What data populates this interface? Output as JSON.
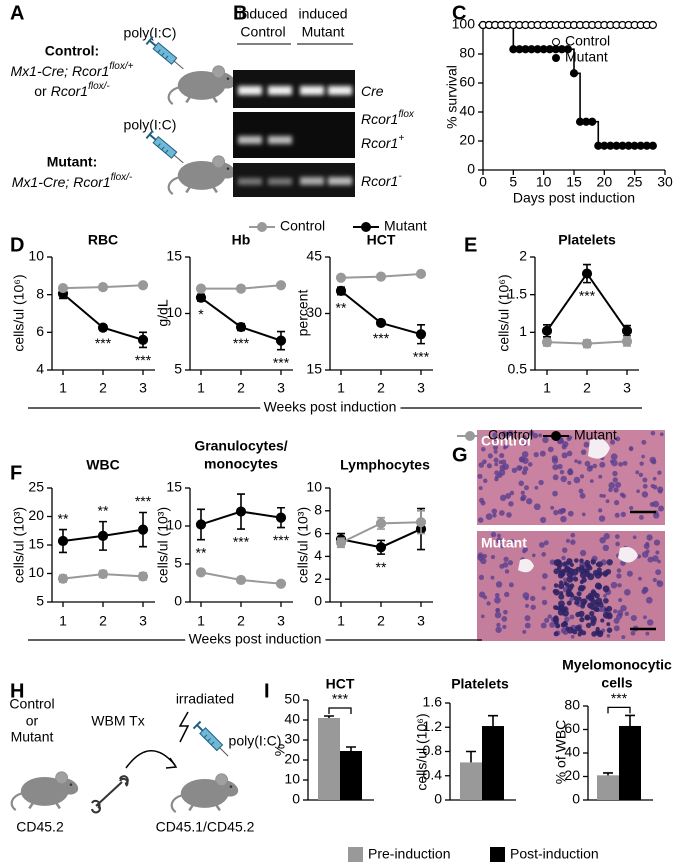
{
  "panel_labels": [
    "A",
    "B",
    "C",
    "D",
    "E",
    "F",
    "G",
    "H",
    "I"
  ],
  "panel_a": {
    "injection": [
      "poly(I:C)",
      "poly(I:C)"
    ],
    "control": {
      "label": "Control:",
      "line1": {
        "text": "Mx1-Cre; Rcor1",
        "sup": "flox/+"
      },
      "line2": {
        "conj": "or",
        "text": "Rcor1",
        "sup": "flox/-"
      }
    },
    "mutant": {
      "label": "Mutant:",
      "line1": {
        "text": "Mx1-Cre; Rcor1",
        "sup": "flox/-"
      }
    }
  },
  "panel_b": {
    "lanes": [
      {
        "line1": "induced",
        "line2": "Control"
      },
      {
        "line1": "induced",
        "line2": "Mutant"
      }
    ],
    "bands": [
      {
        "text": "Cre"
      },
      {
        "text": "Rcor1",
        "sup": "flox"
      },
      {
        "text": "Rcor1",
        "sup": "+"
      },
      {
        "text": "Rcor1",
        "sup": "-"
      }
    ]
  },
  "panel_g": {
    "labels": [
      "Control",
      "Mutant"
    ]
  },
  "panel_h": {
    "donor": [
      "Control",
      "or",
      "Mutant"
    ],
    "transplant": "WBM Tx",
    "treatment": "irradiated",
    "injection": "poly(I:C)",
    "donor_marker": "CD45.2",
    "recipient_marker": "CD45.1/CD45.2"
  },
  "chart_data": [
    {
      "type": "line",
      "step": true,
      "x_label": "Days post induction",
      "y_label": "% survival",
      "x": [
        0,
        1,
        2,
        3,
        4,
        5,
        6,
        7,
        8,
        9,
        10,
        11,
        12,
        13,
        14,
        15,
        16,
        17,
        18,
        19,
        20,
        21,
        22,
        23,
        24,
        25,
        26,
        27,
        28
      ],
      "xlim": [
        0,
        30
      ],
      "xticks": [
        0,
        5,
        10,
        15,
        20,
        25,
        30
      ],
      "ylim": [
        0,
        100
      ],
      "yticks": [
        0,
        20,
        40,
        60,
        80,
        100
      ],
      "series": [
        {
          "name": "Control",
          "color": "#000000",
          "fill": "#ffffff",
          "values": [
            100,
            100,
            100,
            100,
            100,
            100,
            100,
            100,
            100,
            100,
            100,
            100,
            100,
            100,
            100,
            100,
            100,
            100,
            100,
            100,
            100,
            100,
            100,
            100,
            100,
            100,
            100,
            100,
            100
          ]
        },
        {
          "name": "Mutant",
          "color": "#000000",
          "fill": "#000000",
          "values": [
            100,
            100,
            100,
            100,
            100,
            83.3,
            83.3,
            83.3,
            83.3,
            83.3,
            83.3,
            83.3,
            83.3,
            83.3,
            83.3,
            66.7,
            33.3,
            33.3,
            33.3,
            16.7,
            16.7,
            16.7,
            16.7,
            16.7,
            16.7,
            16.7,
            16.7,
            16.7,
            16.7
          ]
        }
      ]
    },
    {
      "type": "line",
      "title": "RBC",
      "y_label": "cells/ul (10⁶)",
      "x_label": "Weeks post induction",
      "categories": [
        1,
        2,
        3
      ],
      "ylim": [
        4,
        10
      ],
      "yticks": [
        4,
        6,
        8,
        10
      ],
      "series": [
        {
          "name": "Control",
          "color": "#999999",
          "values": [
            8.35,
            8.4,
            8.5
          ],
          "errors": [
            0.1,
            0.15,
            0.1
          ]
        },
        {
          "name": "Mutant",
          "color": "#000000",
          "values": [
            8.05,
            6.25,
            5.6
          ],
          "errors": [
            0.25,
            0.15,
            0.4
          ]
        }
      ],
      "annotations": [
        null,
        "***",
        "***"
      ]
    },
    {
      "type": "line",
      "title": "Hb",
      "y_label": "g/dL",
      "categories": [
        1,
        2,
        3
      ],
      "ylim": [
        5,
        15
      ],
      "yticks": [
        5,
        10,
        15
      ],
      "series": [
        {
          "color": "#999999",
          "values": [
            12.2,
            12.2,
            12.5
          ],
          "errors": [
            0.2,
            0.25,
            0.15
          ]
        },
        {
          "color": "#000000",
          "values": [
            11.4,
            8.8,
            7.6
          ],
          "errors": [
            0.3,
            0.3,
            0.8
          ]
        }
      ],
      "annotations": [
        "*",
        "***",
        "***"
      ]
    },
    {
      "type": "line",
      "title": "HCT",
      "y_label": "percent",
      "categories": [
        1,
        2,
        3
      ],
      "ylim": [
        15,
        45
      ],
      "yticks": [
        15,
        30,
        45
      ],
      "series": [
        {
          "color": "#999999",
          "values": [
            39.5,
            39.8,
            40.5
          ],
          "errors": [
            0.5,
            0.5,
            0.4
          ]
        },
        {
          "color": "#000000",
          "values": [
            36,
            27.5,
            24.5
          ],
          "errors": [
            1,
            0.6,
            2.5
          ]
        }
      ],
      "annotations": [
        "**",
        "***",
        "***"
      ]
    },
    {
      "type": "line",
      "title": "Platelets",
      "y_label": "cells/ul (10⁶)",
      "categories": [
        1,
        2,
        3
      ],
      "ylim": [
        0.5,
        2
      ],
      "yticks": [
        0.5,
        1,
        1.5,
        2
      ],
      "series": [
        {
          "color": "#999999",
          "values": [
            0.87,
            0.85,
            0.88
          ],
          "errors": [
            0.05,
            0.05,
            0.06
          ]
        },
        {
          "color": "#000000",
          "values": [
            1.02,
            1.78,
            1.02
          ],
          "errors": [
            0.08,
            0.12,
            0.07
          ]
        }
      ],
      "annotations": [
        null,
        "***",
        null
      ]
    },
    {
      "type": "line",
      "title": "WBC",
      "y_label": "cells/ul (10³)",
      "x_label": "Weeks post induction",
      "categories": [
        1,
        2,
        3
      ],
      "ylim": [
        5,
        25
      ],
      "yticks": [
        5,
        10,
        15,
        20,
        25
      ],
      "series": [
        {
          "name": "Control",
          "color": "#999999",
          "values": [
            9.1,
            9.9,
            9.5
          ],
          "errors": [
            0.6,
            0.6,
            0.6
          ]
        },
        {
          "name": "Mutant",
          "color": "#000000",
          "values": [
            15.7,
            16.6,
            17.7
          ],
          "errors": [
            2,
            2.5,
            3
          ]
        }
      ],
      "annotations": [
        "**",
        "**",
        "***"
      ]
    },
    {
      "type": "line",
      "title_lines": [
        "Granulocytes/",
        "monocytes"
      ],
      "y_label": "cells/ul (10³)",
      "categories": [
        1,
        2,
        3
      ],
      "ylim": [
        0,
        15
      ],
      "yticks": [
        0,
        5,
        10,
        15
      ],
      "series": [
        {
          "color": "#999999",
          "values": [
            3.9,
            2.9,
            2.4
          ],
          "errors": [
            0.3,
            0.2,
            0.15
          ]
        },
        {
          "color": "#000000",
          "values": [
            10.2,
            11.9,
            11.1
          ],
          "errors": [
            2,
            2.3,
            1.3
          ]
        }
      ],
      "annotations": [
        "**",
        "***",
        "***"
      ]
    },
    {
      "type": "line",
      "title": "Lymphocytes",
      "y_label": "cells/ul (10³)",
      "categories": [
        1,
        2,
        3
      ],
      "ylim": [
        0,
        10
      ],
      "yticks": [
        0,
        2,
        4,
        6,
        8,
        10
      ],
      "series": [
        {
          "color": "#999999",
          "values": [
            5.2,
            6.9,
            7.0
          ],
          "errors": [
            0.4,
            0.5,
            1.0
          ]
        },
        {
          "color": "#000000",
          "values": [
            5.5,
            4.8,
            6.4
          ],
          "errors": [
            0.5,
            0.6,
            1.8
          ]
        }
      ],
      "annotations": [
        null,
        "**",
        null
      ]
    },
    {
      "type": "bar",
      "title": "HCT",
      "y_label": "%",
      "ylim": [
        0,
        50
      ],
      "yticks": [
        0,
        10,
        20,
        30,
        40,
        50
      ],
      "series": [
        {
          "name": "Pre-induction",
          "color": "#999999",
          "values": [
            41
          ],
          "errors": [
            1
          ]
        },
        {
          "name": "Post-induction",
          "color": "#000000",
          "values": [
            24.5
          ],
          "errors": [
            2
          ]
        }
      ],
      "annotation": "***"
    },
    {
      "type": "bar",
      "title": "Platelets",
      "y_label": "cells/ul (10⁶)",
      "ylim": [
        0,
        1.6
      ],
      "yticks": [
        0,
        0.4,
        0.8,
        1.2,
        1.6
      ],
      "series": [
        {
          "color": "#999999",
          "values": [
            0.62
          ],
          "errors": [
            0.18
          ]
        },
        {
          "color": "#000000",
          "values": [
            1.22
          ],
          "errors": [
            0.17
          ]
        }
      ]
    },
    {
      "type": "bar",
      "title_lines": [
        "Myelomonocytic",
        "cells"
      ],
      "y_label": "% of WBC",
      "ylim": [
        0,
        80
      ],
      "yticks": [
        0,
        20,
        40,
        60,
        80
      ],
      "series": [
        {
          "color": "#999999",
          "values": [
            21
          ],
          "errors": [
            2
          ]
        },
        {
          "color": "#000000",
          "values": [
            63
          ],
          "errors": [
            9
          ]
        }
      ],
      "annotation": "***"
    }
  ]
}
